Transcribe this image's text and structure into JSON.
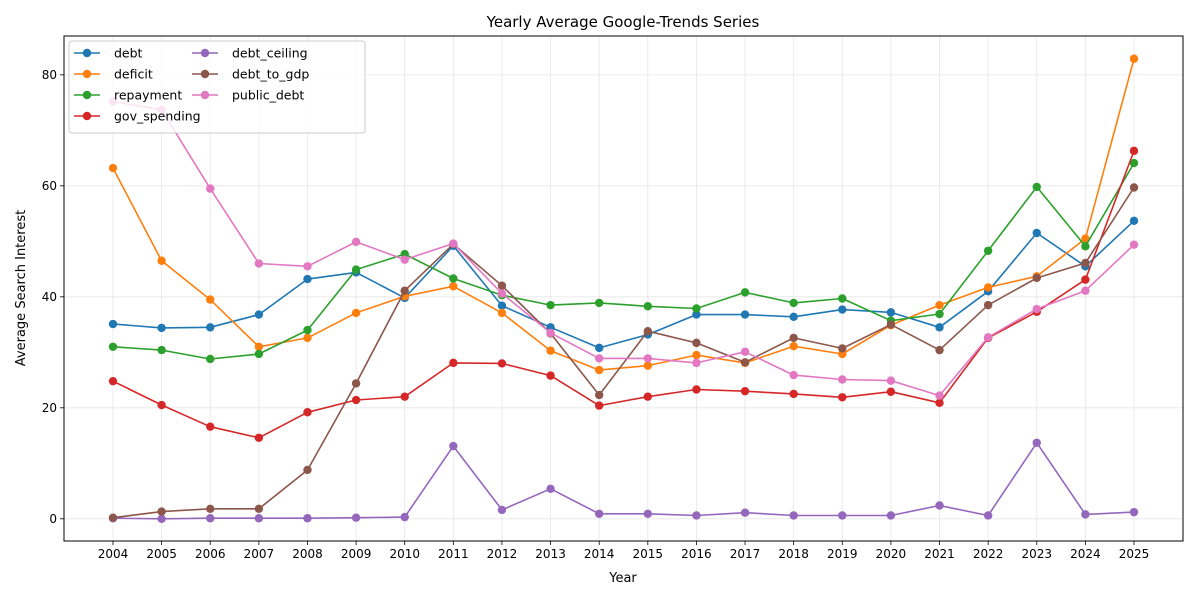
{
  "chart_data": {
    "type": "line",
    "title": "Yearly Average Google-Trends Series",
    "xlabel": "Year",
    "ylabel": "Average Search Interest",
    "x": [
      "2004",
      "2005",
      "2006",
      "2007",
      "2008",
      "2009",
      "2010",
      "2011",
      "2012",
      "2013",
      "2014",
      "2015",
      "2016",
      "2017",
      "2018",
      "2019",
      "2020",
      "2021",
      "2022",
      "2023",
      "2024",
      "2025"
    ],
    "ylim": [
      -4,
      87
    ],
    "yticks": [
      0,
      20,
      40,
      60,
      80
    ],
    "grid": true,
    "legend_position": "top-left",
    "series": [
      {
        "name": "debt",
        "color": "#1f77b4",
        "values": [
          35.1,
          34.4,
          34.5,
          36.8,
          43.2,
          44.4,
          39.8,
          49.2,
          38.4,
          34.5,
          30.8,
          33.2,
          36.8,
          36.8,
          36.4,
          37.7,
          37.2,
          34.5,
          41.0,
          51.5,
          45.5,
          53.7
        ]
      },
      {
        "name": "deficit",
        "color": "#ff7f0e",
        "values": [
          63.2,
          46.5,
          39.5,
          31.0,
          32.6,
          37.1,
          40.1,
          41.9,
          37.1,
          30.3,
          26.8,
          27.6,
          29.5,
          28.1,
          31.1,
          29.7,
          34.9,
          38.5,
          41.7,
          43.7,
          50.5,
          82.9
        ]
      },
      {
        "name": "repayment",
        "color": "#2ca02c",
        "values": [
          31.0,
          30.4,
          28.8,
          29.7,
          34.0,
          44.9,
          47.7,
          43.3,
          40.3,
          38.5,
          38.9,
          38.3,
          37.9,
          40.8,
          38.9,
          39.7,
          35.7,
          36.9,
          48.3,
          59.8,
          49.1,
          64.1
        ]
      },
      {
        "name": "gov_spending",
        "color": "#d62728",
        "values": [
          24.8,
          20.5,
          16.6,
          14.6,
          19.2,
          21.4,
          22.0,
          28.1,
          28.0,
          25.8,
          20.4,
          22.0,
          23.3,
          23.0,
          22.5,
          21.9,
          22.9,
          20.9,
          32.6,
          37.3,
          43.1,
          66.3
        ]
      },
      {
        "name": "debt_ceiling",
        "color": "#9467bd",
        "values": [
          0.1,
          0.0,
          0.1,
          0.1,
          0.1,
          0.2,
          0.3,
          13.1,
          1.6,
          5.4,
          0.9,
          0.9,
          0.6,
          1.1,
          0.6,
          0.6,
          0.6,
          2.4,
          0.6,
          13.7,
          0.8,
          1.2
        ]
      },
      {
        "name": "debt_to_gdp",
        "color": "#8c564b",
        "values": [
          0.2,
          1.3,
          1.8,
          1.8,
          8.8,
          24.4,
          41.1,
          49.5,
          42.0,
          33.4,
          22.3,
          33.8,
          31.7,
          28.2,
          32.6,
          30.7,
          35.0,
          30.4,
          38.5,
          43.4,
          46.1,
          59.7
        ]
      },
      {
        "name": "public_debt",
        "color": "#e377c2",
        "values": [
          75.2,
          73.7,
          59.5,
          46.0,
          45.5,
          49.9,
          46.7,
          49.6,
          40.6,
          33.5,
          28.9,
          28.9,
          28.1,
          30.1,
          25.9,
          25.1,
          24.9,
          22.2,
          32.7,
          37.8,
          41.1,
          49.4
        ]
      }
    ]
  }
}
